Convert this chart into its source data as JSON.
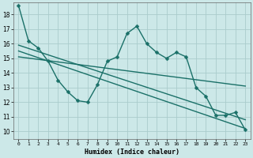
{
  "xlabel": "Humidex (Indice chaleur)",
  "background_color": "#cce8e8",
  "grid_color": "#aacccc",
  "line_color": "#1a7068",
  "xlim": [
    -0.5,
    23.5
  ],
  "ylim": [
    9.5,
    18.8
  ],
  "yticks": [
    10,
    11,
    12,
    13,
    14,
    15,
    16,
    17,
    18
  ],
  "xticks": [
    0,
    1,
    2,
    3,
    4,
    5,
    6,
    7,
    8,
    9,
    10,
    11,
    12,
    13,
    14,
    15,
    16,
    17,
    18,
    19,
    20,
    21,
    22,
    23
  ],
  "series1_x": [
    0,
    1,
    2,
    3,
    4,
    5,
    6,
    7,
    8,
    9,
    10,
    11,
    12,
    13,
    14,
    15,
    16,
    17,
    18,
    19,
    20,
    21,
    22,
    23
  ],
  "series1_y": [
    18.6,
    16.2,
    15.7,
    14.8,
    13.5,
    12.7,
    12.1,
    12.0,
    13.2,
    14.8,
    15.1,
    16.7,
    17.2,
    16.0,
    15.4,
    15.0,
    15.4,
    15.1,
    13.0,
    12.4,
    11.1,
    11.1,
    11.3,
    10.1
  ],
  "series2_x": [
    0,
    23
  ],
  "series2_y": [
    15.9,
    10.8
  ],
  "series3_x": [
    0,
    23
  ],
  "series3_y": [
    15.5,
    10.2
  ],
  "series4_x": [
    0,
    23
  ],
  "series4_y": [
    15.1,
    13.1
  ],
  "markersize": 2.5,
  "linewidth": 1.0
}
